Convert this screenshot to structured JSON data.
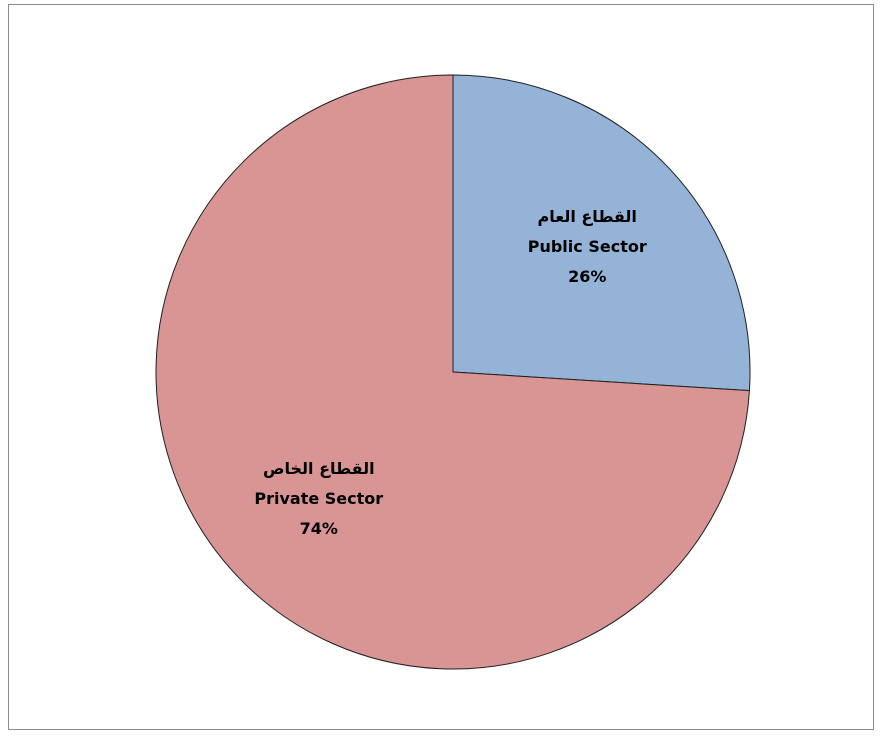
{
  "chart_data": {
    "type": "pie",
    "title": "",
    "start_angle_deg": 0,
    "direction": "clockwise",
    "slices": [
      {
        "label_ar": "القطاع العام",
        "label_en": "Public Sector",
        "value": 26,
        "value_label": "26%",
        "color": "#95B3D7"
      },
      {
        "label_ar": "القطاع الخاص",
        "label_en": "Private Sector",
        "value": 74,
        "value_label": "74%",
        "color": "#D99594"
      }
    ],
    "edge_color": "#1f1f1f",
    "legend": "none"
  }
}
